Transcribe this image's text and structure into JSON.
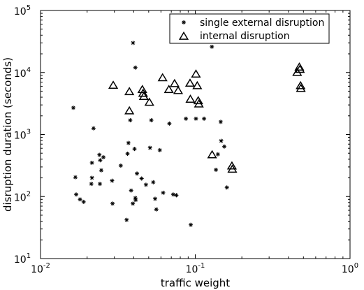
{
  "chart_data": {
    "type": "scatter",
    "title": "",
    "xlabel": "traffic weight",
    "ylabel": "disruption duration (seconds)",
    "xscale": "log",
    "yscale": "log",
    "xlim": [
      0.01,
      1
    ],
    "ylim": [
      10,
      100000
    ],
    "grid": false,
    "legend_position": "top-right",
    "x_ticks": [
      {
        "base": "10",
        "exp": "-2",
        "value": 0.01
      },
      {
        "base": "10",
        "exp": "-1",
        "value": 0.1
      },
      {
        "base": "10",
        "exp": "0",
        "value": 1
      }
    ],
    "y_ticks": [
      {
        "base": "10",
        "exp": "1",
        "value": 10
      },
      {
        "base": "10",
        "exp": "2",
        "value": 100
      },
      {
        "base": "10",
        "exp": "3",
        "value": 1000
      },
      {
        "base": "10",
        "exp": "4",
        "value": 10000
      },
      {
        "base": "10",
        "exp": "5",
        "value": 100000
      }
    ],
    "series": [
      {
        "name": "single external disruption",
        "marker": "asterisk",
        "points": [
          [
            0.0163,
            2700
          ],
          [
            0.0168,
            205
          ],
          [
            0.017,
            108
          ],
          [
            0.018,
            90
          ],
          [
            0.019,
            82
          ],
          [
            0.022,
            1260
          ],
          [
            0.0215,
            350
          ],
          [
            0.0215,
            200
          ],
          [
            0.0213,
            160
          ],
          [
            0.024,
            470
          ],
          [
            0.0255,
            430
          ],
          [
            0.0243,
            385
          ],
          [
            0.0247,
            265
          ],
          [
            0.0242,
            160
          ],
          [
            0.029,
            180
          ],
          [
            0.0292,
            77
          ],
          [
            0.033,
            315
          ],
          [
            0.036,
            42
          ],
          [
            0.0365,
            490
          ],
          [
            0.037,
            730
          ],
          [
            0.038,
            1700
          ],
          [
            0.0395,
            77
          ],
          [
            0.0385,
            125
          ],
          [
            0.0396,
            30000
          ],
          [
            0.041,
            12000
          ],
          [
            0.0405,
            585
          ],
          [
            0.042,
            235
          ],
          [
            0.041,
            95
          ],
          [
            0.0412,
            88
          ],
          [
            0.045,
            195
          ],
          [
            0.048,
            155
          ],
          [
            0.051,
            610
          ],
          [
            0.052,
            1700
          ],
          [
            0.0535,
            170
          ],
          [
            0.055,
            92
          ],
          [
            0.056,
            62
          ],
          [
            0.059,
            560
          ],
          [
            0.062,
            115
          ],
          [
            0.068,
            1500
          ],
          [
            0.072,
            108
          ],
          [
            0.0755,
            105
          ],
          [
            0.087,
            1800
          ],
          [
            0.0935,
            35
          ],
          [
            0.101,
            1800
          ],
          [
            0.114,
            1800
          ],
          [
            0.128,
            26000
          ],
          [
            0.136,
            270
          ],
          [
            0.14,
            480
          ],
          [
            0.146,
            1600
          ],
          [
            0.147,
            790
          ],
          [
            0.154,
            640
          ],
          [
            0.16,
            140
          ]
        ]
      },
      {
        "name": "internal disruption",
        "marker": "triangle",
        "points": [
          [
            0.0295,
            6200
          ],
          [
            0.0375,
            4900
          ],
          [
            0.0375,
            2400
          ],
          [
            0.0455,
            5300
          ],
          [
            0.046,
            4600
          ],
          [
            0.0465,
            4100
          ],
          [
            0.0505,
            3300
          ],
          [
            0.0615,
            8200
          ],
          [
            0.0675,
            5300
          ],
          [
            0.0735,
            6600
          ],
          [
            0.0775,
            5100
          ],
          [
            0.0925,
            6700
          ],
          [
            0.093,
            3700
          ],
          [
            0.101,
            9400
          ],
          [
            0.103,
            6100
          ],
          [
            0.1045,
            3500
          ],
          [
            0.1055,
            3100
          ],
          [
            0.1285,
            470
          ],
          [
            0.1725,
            310
          ],
          [
            0.1735,
            275
          ],
          [
            0.4555,
            10000
          ],
          [
            0.4705,
            12200
          ],
          [
            0.4745,
            11200
          ],
          [
            0.479,
            6100
          ],
          [
            0.481,
            5500
          ]
        ]
      }
    ]
  }
}
